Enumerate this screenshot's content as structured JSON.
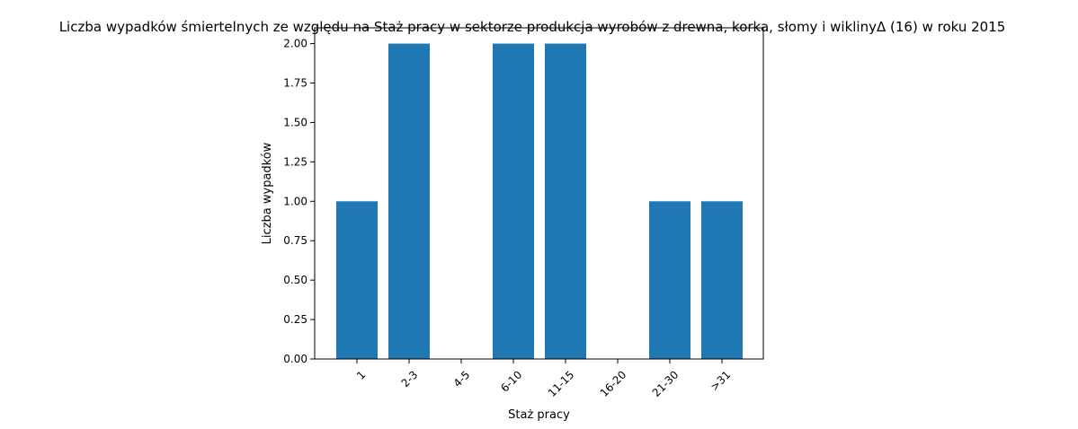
{
  "chart_data": {
    "type": "bar",
    "title": "Liczba wypadków śmiertelnych ze względu na Staż pracy w sektorze produkcja wyrobów z drewna, korka, słomy i wiklinyΔ (16)  w roku 2015",
    "xlabel": "Staż pracy",
    "ylabel": "Liczba wypadków",
    "categories": [
      "1",
      "2-3",
      "4-5",
      "6-10",
      "11-15",
      "16-20",
      "21-30",
      ">31"
    ],
    "values": [
      1,
      2,
      0,
      2,
      2,
      0,
      1,
      1
    ],
    "ylim": [
      0,
      2.1
    ],
    "yticks": [
      0,
      0.25,
      0.5,
      0.75,
      1.0,
      1.25,
      1.5,
      1.75,
      2.0
    ],
    "ytick_labels": [
      "0.00",
      "0.25",
      "0.50",
      "0.75",
      "1.00",
      "1.25",
      "1.50",
      "1.75",
      "2.00"
    ],
    "bar_color": "#1f77b4",
    "grid": false,
    "legend": "none"
  }
}
